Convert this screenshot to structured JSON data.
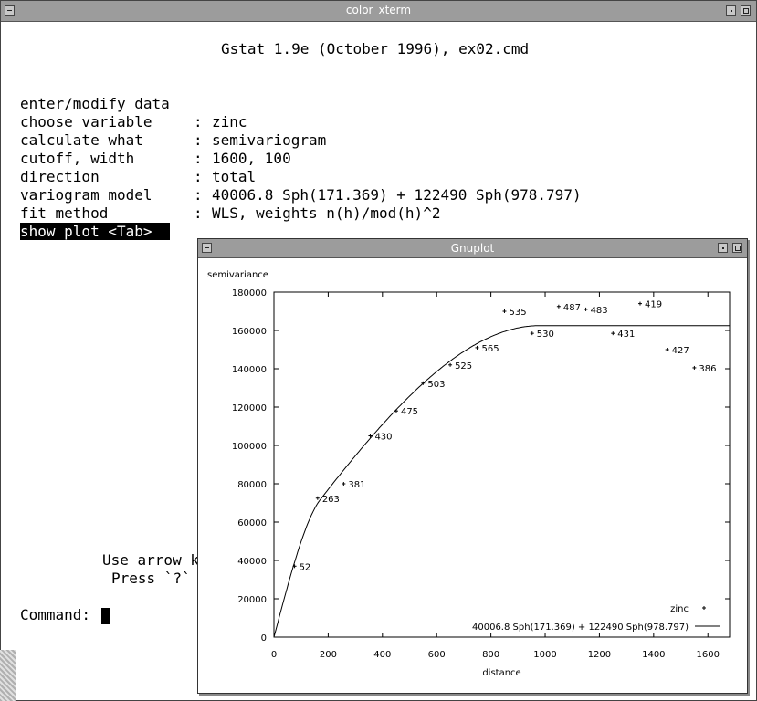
{
  "xterm": {
    "title": "color_xterm",
    "header": "Gstat 1.9e (October 1996), ex02.cmd",
    "menu": [
      {
        "label": "enter/modify data",
        "sep": "",
        "value": ""
      },
      {
        "label": "choose variable",
        "sep": ":",
        "value": "zinc"
      },
      {
        "label": "calculate what",
        "sep": ":",
        "value": "semivariogram"
      },
      {
        "label": "cutoff, width",
        "sep": ":",
        "value": "1600, 100"
      },
      {
        "label": "direction",
        "sep": ":",
        "value": "total"
      },
      {
        "label": "variogram model",
        "sep": ":",
        "value": "40006.8 Sph(171.369) + 122490 Sph(978.797)"
      },
      {
        "label": "fit method",
        "sep": ":",
        "value": "WLS, weights n(h)/mod(h)^2"
      }
    ],
    "selected": "show plot <Tab>",
    "hint1": "Use arrow k",
    "hint2": "Press `?`",
    "command_label": "Command:"
  },
  "gnuplot": {
    "title": "Gnuplot",
    "legend": {
      "points_label": "zinc",
      "model_label": "40006.8 Sph(171.369) + 122490 Sph(978.797)"
    }
  },
  "chart_data": {
    "type": "scatter",
    "title": "",
    "xlabel": "distance",
    "ylabel": "semivariance",
    "xlim": [
      0,
      1680
    ],
    "ylim": [
      0,
      180000
    ],
    "xticks": [
      0,
      200,
      400,
      600,
      800,
      1000,
      1200,
      1400,
      1600
    ],
    "yticks": [
      0,
      20000,
      40000,
      60000,
      80000,
      100000,
      120000,
      140000,
      160000,
      180000
    ],
    "legend_position": "bottom-right",
    "series": [
      {
        "name": "zinc",
        "points": [
          {
            "x": 76,
            "y": 37000,
            "n": "52"
          },
          {
            "x": 161,
            "y": 72500,
            "n": "263"
          },
          {
            "x": 257,
            "y": 80000,
            "n": "381"
          },
          {
            "x": 355,
            "y": 105000,
            "n": "430"
          },
          {
            "x": 451,
            "y": 118000,
            "n": "475"
          },
          {
            "x": 550,
            "y": 132500,
            "n": "503"
          },
          {
            "x": 650,
            "y": 142000,
            "n": "525"
          },
          {
            "x": 749,
            "y": 151000,
            "n": "565"
          },
          {
            "x": 850,
            "y": 170000,
            "n": "535"
          },
          {
            "x": 952,
            "y": 158500,
            "n": "530"
          },
          {
            "x": 1050,
            "y": 172500,
            "n": "487"
          },
          {
            "x": 1150,
            "y": 171000,
            "n": "483"
          },
          {
            "x": 1250,
            "y": 158500,
            "n": "431"
          },
          {
            "x": 1350,
            "y": 174000,
            "n": "419"
          },
          {
            "x": 1450,
            "y": 150000,
            "n": "427"
          },
          {
            "x": 1550,
            "y": 140500,
            "n": "386"
          }
        ]
      },
      {
        "name": "40006.8 Sph(171.369) + 122490 Sph(978.797)",
        "model": {
          "type": "nested-spherical",
          "components": [
            {
              "sill": 40006.8,
              "range": 171.369
            },
            {
              "sill": 122490,
              "range": 978.797
            }
          ]
        }
      }
    ]
  }
}
